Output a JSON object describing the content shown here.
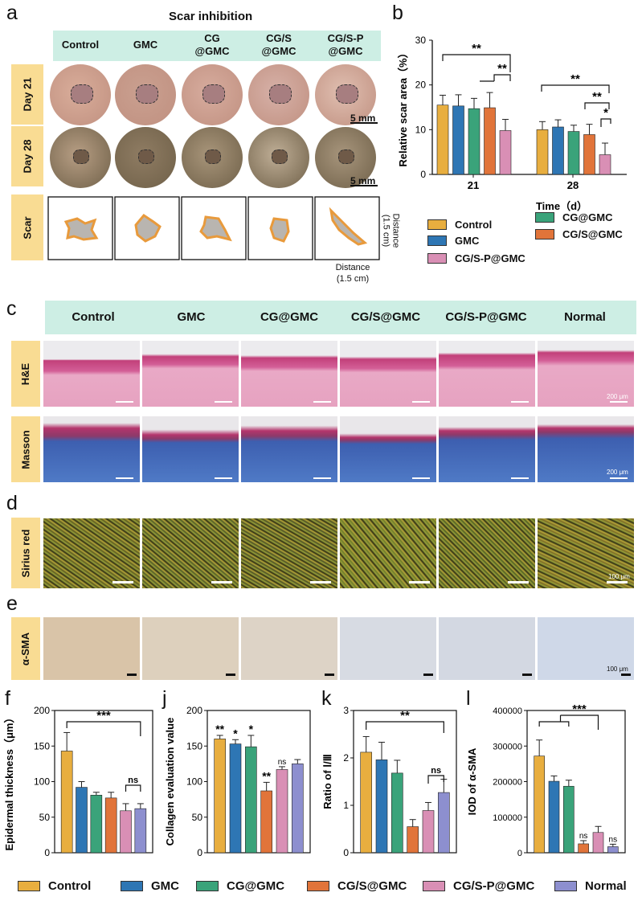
{
  "panels": {
    "a": "a",
    "b": "b",
    "c": "c",
    "d": "d",
    "e": "e",
    "f": "f",
    "j": "j",
    "k": "k",
    "l": "l"
  },
  "colors": {
    "Control": "#e8ae3f",
    "GMC": "#2e76b4",
    "CG@GMC": "#3aa37a",
    "CG/S@GMC": "#e1743a",
    "CG/S-P@GMC": "#d98fb5",
    "Normal": "#8d8fcf"
  },
  "panel_a": {
    "title": "Scar inhibition",
    "columns": [
      "Control",
      "GMC",
      "CG\n@GMC",
      "CG/S\n@GMC",
      "CG/S-P\n@GMC"
    ],
    "rows": [
      "Day 21",
      "Day 28",
      "Scar"
    ],
    "scale": "5 mm",
    "distance_v": "Distance\n(1.5 cm)",
    "distance_h": "Distance\n(1.5 cm)"
  },
  "panel_c": {
    "columns": [
      "Control",
      "GMC",
      "CG@GMC",
      "CG/S@GMC",
      "CG/S-P@GMC",
      "Normal"
    ],
    "rows": [
      "H&E",
      "Masson"
    ],
    "scale": "200 μm"
  },
  "panel_d": {
    "row": "Sirius red",
    "scale": "100 μm"
  },
  "panel_e": {
    "row": "α-SMA",
    "scale": "100 μm"
  },
  "legend_b": [
    "Control",
    "GMC",
    "CG/S-P@GMC",
    "CG@GMC",
    "CG/S@GMC"
  ],
  "legend_bottom": [
    "Control",
    "GMC",
    "CG@GMC",
    "CG/S@GMC",
    "CG/S-P@GMC",
    "Normal"
  ],
  "chart_data": [
    {
      "id": "b",
      "type": "bar",
      "categories": [
        "21",
        "28"
      ],
      "series": [
        {
          "name": "Control",
          "values": [
            15.5,
            10.0
          ],
          "err": [
            2.2,
            1.8
          ]
        },
        {
          "name": "GMC",
          "values": [
            15.3,
            10.6
          ],
          "err": [
            2.5,
            1.6
          ]
        },
        {
          "name": "CG@GMC",
          "values": [
            14.7,
            9.6
          ],
          "err": [
            2.3,
            1.4
          ]
        },
        {
          "name": "CG/S@GMC",
          "values": [
            14.9,
            8.9
          ],
          "err": [
            3.4,
            2.3
          ]
        },
        {
          "name": "CG/S-P@GMC",
          "values": [
            9.8,
            4.4
          ],
          "err": [
            2.5,
            2.6
          ]
        }
      ],
      "xlabel": "Time（d）",
      "ylabel": "Relative scar area（%）",
      "ylim": [
        0,
        30
      ],
      "yticks": [
        0,
        10,
        20,
        30
      ],
      "annotations": [
        "**",
        "**",
        "**",
        "**",
        "*"
      ]
    },
    {
      "id": "f",
      "type": "bar",
      "categories": [
        "Control",
        "GMC",
        "CG@GMC",
        "CG/S@GMC",
        "CG/S-P@GMC",
        "Normal"
      ],
      "values": [
        143,
        92,
        81,
        77,
        59,
        62
      ],
      "err": [
        26,
        8,
        4,
        8,
        10,
        7
      ],
      "ylabel": "Epidermal thickness（μm）",
      "ylim": [
        0,
        200
      ],
      "yticks": [
        0,
        50,
        100,
        150,
        200
      ],
      "annotations": [
        "***",
        "ns"
      ]
    },
    {
      "id": "j",
      "type": "bar",
      "categories": [
        "Control",
        "GMC",
        "CG@GMC",
        "CG/S@GMC",
        "CG/S-P@GMC",
        "Normal"
      ],
      "values": [
        160,
        153,
        149,
        87,
        117,
        125
      ],
      "err": [
        5,
        6,
        16,
        12,
        4,
        6
      ],
      "ylabel": "Collagen evaluation value",
      "ylim": [
        0,
        200
      ],
      "yticks": [
        0,
        50,
        100,
        150,
        200
      ],
      "annotations": [
        "**",
        "*",
        "*",
        "**",
        "ns"
      ]
    },
    {
      "id": "k",
      "type": "bar",
      "categories": [
        "Control",
        "GMC",
        "CG@GMC",
        "CG/S@GMC",
        "CG/S-P@GMC",
        "Normal"
      ],
      "values": [
        2.12,
        1.96,
        1.68,
        0.55,
        0.89,
        1.27
      ],
      "err": [
        0.33,
        0.37,
        0.27,
        0.15,
        0.17,
        0.28
      ],
      "ylabel": "Ratio of Ⅰ/Ⅲ",
      "ylim": [
        0,
        3
      ],
      "yticks": [
        0,
        1,
        2,
        3
      ],
      "annotations": [
        "**",
        "ns"
      ]
    },
    {
      "id": "l",
      "type": "bar",
      "categories": [
        "Control",
        "GMC",
        "CG@GMC",
        "CG/S@GMC",
        "CG/S-P@GMC",
        "Normal"
      ],
      "values": [
        272000,
        201000,
        187000,
        25000,
        57000,
        17000
      ],
      "err": [
        45000,
        15000,
        17000,
        9000,
        17000,
        7000
      ],
      "ylabel": "IOD of α-SMA",
      "ylim": [
        0,
        400000
      ],
      "yticks": [
        0,
        100000,
        200000,
        300000,
        400000
      ],
      "annotations": [
        "***",
        "ns",
        "ns"
      ]
    }
  ]
}
